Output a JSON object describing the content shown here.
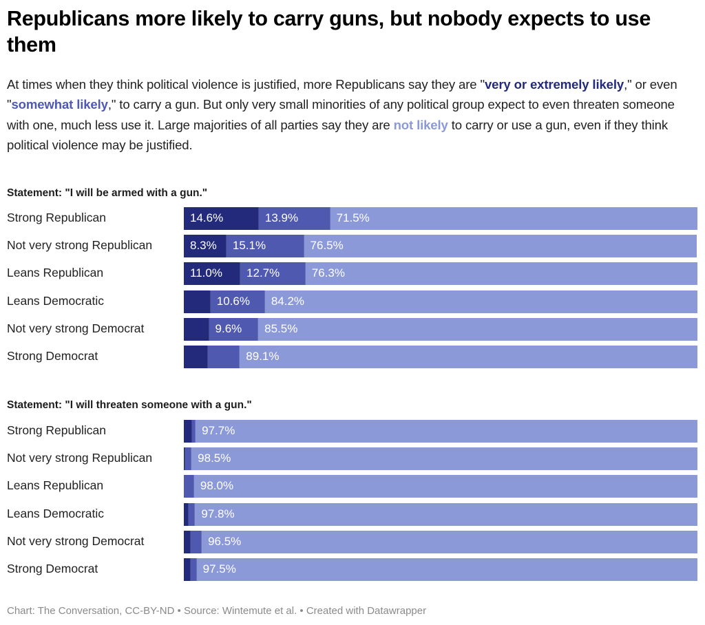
{
  "title": "Republicans more likely to carry guns, but nobody expects to use them",
  "subtitle": [
    {
      "text": "At times when they think political violence is justified, more Republicans say they are \""
    },
    {
      "text": "very or extremely likely",
      "color": "#232a7c"
    },
    {
      "text": ",\" or even \""
    },
    {
      "text": "somewhat likely",
      "color": "#4f59b0"
    },
    {
      "text": ",\" to carry a gun. But only very small minorities of any political group expect to even threaten someone with one, much less use it. Large majorities of all parties say they are "
    },
    {
      "text": "not likely",
      "color": "#8c99d8"
    },
    {
      "text": " to carry or use a gun, even if they think political violence may be justified."
    }
  ],
  "colors": {
    "very_or_extremely_likely": "#232a7c",
    "somewhat_likely": "#4f59b0",
    "not_likely": "#8c99d8"
  },
  "chart_data": [
    {
      "type": "bar",
      "orientation": "horizontal",
      "stacked": true,
      "title": "Statement: \"I will be armed with a gun.\"",
      "categories": [
        "Strong Republican",
        "Not very strong Republican",
        "Leans Republican",
        "Leans Democratic",
        "Not very strong Democrat",
        "Strong Democrat"
      ],
      "series": [
        {
          "name": "very or extremely likely",
          "color": "#232a7c",
          "values": [
            14.6,
            8.3,
            11.0,
            5.2,
            4.9,
            4.7
          ]
        },
        {
          "name": "somewhat likely",
          "color": "#4f59b0",
          "values": [
            13.9,
            15.1,
            12.7,
            10.6,
            9.6,
            6.2
          ]
        },
        {
          "name": "not likely",
          "color": "#8c99d8",
          "values": [
            71.5,
            76.5,
            76.3,
            84.2,
            85.5,
            89.1
          ]
        }
      ],
      "xlim": [
        0,
        100
      ],
      "unit": "%"
    },
    {
      "type": "bar",
      "orientation": "horizontal",
      "stacked": true,
      "title": "Statement: \"I will threaten someone with a gun.\"",
      "categories": [
        "Strong Republican",
        "Not very strong Republican",
        "Leans Republican",
        "Leans Democratic",
        "Not very strong Democrat",
        "Strong Democrat"
      ],
      "series": [
        {
          "name": "very or extremely likely",
          "color": "#232a7c",
          "values": [
            1.6,
            0.3,
            0.0,
            0.9,
            1.3,
            1.3
          ]
        },
        {
          "name": "somewhat likely",
          "color": "#4f59b0",
          "values": [
            0.7,
            1.2,
            2.0,
            1.3,
            2.2,
            1.2
          ]
        },
        {
          "name": "not likely",
          "color": "#8c99d8",
          "values": [
            97.7,
            98.5,
            98.0,
            97.8,
            96.5,
            97.5
          ]
        }
      ],
      "xlim": [
        0,
        100
      ],
      "unit": "%"
    }
  ],
  "footer": "Chart: The Conversation, CC-BY-ND • Source: Wintemute et al. • Created with Datawrapper"
}
